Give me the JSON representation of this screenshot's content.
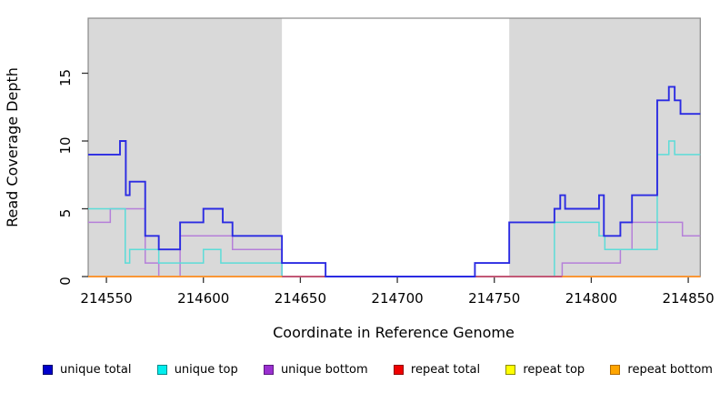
{
  "axes": {
    "xlabel": "Coordinate in Reference Genome",
    "ylabel": "Read Coverage Depth"
  },
  "chart_data": {
    "type": "line",
    "subtype": "step",
    "title": "",
    "xlabel": "Coordinate in Reference Genome",
    "ylabel": "Read Coverage Depth",
    "xlim": [
      214540.6,
      214856.2
    ],
    "ylim": [
      0,
      19.06
    ],
    "x_ticks": [
      214550,
      214600,
      214650,
      214700,
      214750,
      214800,
      214850
    ],
    "y_ticks": [
      0,
      5,
      10,
      15
    ],
    "grid": false,
    "plot_border_color": "#888888",
    "tick_color": "#333333",
    "shaded_regions": [
      {
        "x0": 214540.6,
        "x1": 214640.5,
        "color": "#d9d9d9"
      },
      {
        "x0": 214757.7,
        "x1": 214856.2,
        "color": "#d9d9d9"
      }
    ],
    "series": [
      {
        "name": "repeat top",
        "color": "#f2f218",
        "width": 1.6,
        "segments": [
          {
            "points": [
              [
                214540.6,
                0
              ]
            ],
            "xend": 214856.2
          }
        ]
      },
      {
        "name": "unique bottom",
        "color": "#b57fd9",
        "width": 1.5,
        "segments": [
          {
            "points": [
              [
                214540.6,
                4
              ],
              [
                214552,
                5
              ],
              [
                214570,
                1
              ],
              [
                214577,
                0
              ],
              [
                214588,
                3
              ],
              [
                214615,
                2
              ],
              [
                214640.5,
                0
              ],
              [
                214785,
                1
              ],
              [
                214815,
                2
              ],
              [
                214821,
                4
              ],
              [
                214847,
                3
              ]
            ],
            "xend": 214856.2
          }
        ]
      },
      {
        "name": "unique top",
        "color": "#5cdcd8",
        "width": 1.5,
        "segments": [
          {
            "points": [
              [
                214540.6,
                5
              ],
              [
                214559.7,
                1
              ],
              [
                214562,
                2
              ],
              [
                214577,
                1
              ],
              [
                214600,
                2
              ],
              [
                214609,
                1
              ],
              [
                214640.5,
                0
              ],
              [
                214781,
                4
              ],
              [
                214804,
                3
              ],
              [
                214807,
                2
              ],
              [
                214834,
                9
              ],
              [
                214840,
                10
              ],
              [
                214843,
                9
              ]
            ],
            "xend": 214856.2
          }
        ]
      },
      {
        "name": "repeat total",
        "color": "#c8496b",
        "width": 1.7,
        "segments": [
          {
            "points": [
              [
                214540.6,
                0
              ]
            ],
            "xend": 214856.2
          }
        ]
      },
      {
        "name": "unique total",
        "color": "#2b2be2",
        "width": 1.9,
        "segments": [
          {
            "points": [
              [
                214540.6,
                9
              ],
              [
                214557,
                10
              ],
              [
                214560,
                6
              ],
              [
                214562,
                7
              ],
              [
                214570,
                3
              ],
              [
                214577,
                2
              ],
              [
                214588,
                4
              ],
              [
                214600,
                5
              ],
              [
                214610,
                4
              ],
              [
                214615,
                3
              ],
              [
                214640.5,
                1
              ],
              [
                214663,
                0
              ],
              [
                214740,
                1
              ],
              [
                214757.7,
                4
              ],
              [
                214781,
                5
              ],
              [
                214784,
                6
              ],
              [
                214786.5,
                5
              ],
              [
                214804,
                6
              ],
              [
                214806.5,
                3
              ],
              [
                214815,
                4
              ],
              [
                214821,
                6
              ],
              [
                214834,
                13
              ],
              [
                214840,
                14
              ],
              [
                214843,
                13
              ],
              [
                214846,
                12
              ]
            ],
            "xend": 214856.2
          }
        ]
      },
      {
        "name": "repeat bottom",
        "color": "#ff9d2e",
        "width": 1.8,
        "segments": [
          {
            "points": [
              [
                214540.6,
                0
              ]
            ],
            "xend": 214640.5
          },
          {
            "points": [
              [
                214785,
                0
              ]
            ],
            "xend": 214856.2
          }
        ]
      }
    ]
  },
  "legend": {
    "items": [
      {
        "label": "unique total",
        "swatch": "#0000cc",
        "border": "#000066"
      },
      {
        "label": "unique top",
        "swatch": "#00eeee",
        "border": "#008b8b"
      },
      {
        "label": "unique bottom",
        "swatch": "#9a30d0",
        "border": "#5c1a80"
      },
      {
        "label": "repeat total",
        "swatch": "#f00000",
        "border": "#900000"
      },
      {
        "label": "repeat top",
        "swatch": "#ffff00",
        "border": "#8b8b00"
      },
      {
        "label": "repeat bottom",
        "swatch": "#ffa500",
        "border": "#b36b00"
      }
    ]
  }
}
